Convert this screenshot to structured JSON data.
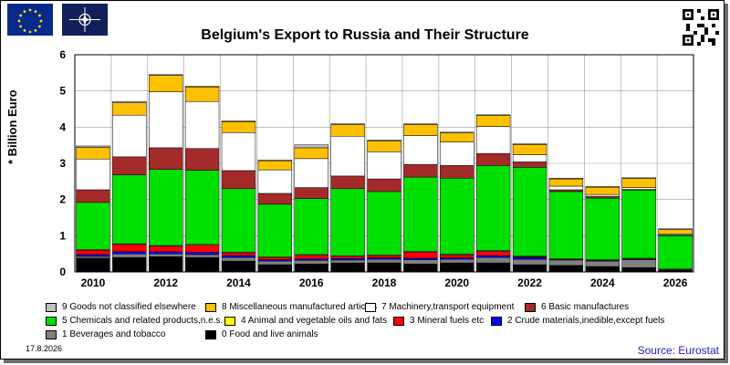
{
  "title": "Belgium's Export to Russia and Their Structure",
  "date": "17.8.2026",
  "source": "Source: Eurostat",
  "chart_data": {
    "type": "bar",
    "stacked": true,
    "ylabel": "* Billion Euro",
    "ylim": [
      0,
      6
    ],
    "yticks": [
      0,
      1,
      2,
      3,
      4,
      5,
      6
    ],
    "xticks": [
      2010,
      2012,
      2014,
      2016,
      2018,
      2020,
      2022,
      2024,
      2026
    ],
    "categories": [
      2010,
      2011,
      2012,
      2013,
      2014,
      2015,
      2016,
      2017,
      2018,
      2019,
      2020,
      2021,
      2022,
      2023,
      2024,
      2025,
      2026
    ],
    "grid": true,
    "series": [
      {
        "name": "0 Food and live animals",
        "color": "#000000",
        "values": [
          0.38,
          0.4,
          0.42,
          0.4,
          0.3,
          0.2,
          0.22,
          0.25,
          0.25,
          0.22,
          0.25,
          0.25,
          0.2,
          0.18,
          0.15,
          0.12,
          0.05
        ]
      },
      {
        "name": "1 Beverages and tobacco",
        "color": "#808080",
        "values": [
          0.05,
          0.1,
          0.08,
          0.08,
          0.1,
          0.1,
          0.1,
          0.08,
          0.1,
          0.12,
          0.1,
          0.15,
          0.15,
          0.15,
          0.15,
          0.22,
          0.02
        ]
      },
      {
        "name": "2 Crude materials,inedible,except fuels",
        "color": "#0000ff",
        "values": [
          0.05,
          0.06,
          0.06,
          0.06,
          0.05,
          0.04,
          0.04,
          0.04,
          0.04,
          0.04,
          0.04,
          0.05,
          0.05,
          0.02,
          0.02,
          0.02,
          0.01
        ]
      },
      {
        "name": "3 Mineral fuels etc",
        "color": "#ff0000",
        "values": [
          0.12,
          0.2,
          0.15,
          0.2,
          0.08,
          0.06,
          0.1,
          0.06,
          0.06,
          0.17,
          0.08,
          0.12,
          0.02,
          0.0,
          0.0,
          0.0,
          0.0
        ]
      },
      {
        "name": "4 Animal and vegetable oils and fats",
        "color": "#ffff00",
        "values": [
          0.02,
          0.02,
          0.02,
          0.02,
          0.02,
          0.02,
          0.02,
          0.02,
          0.02,
          0.02,
          0.02,
          0.02,
          0.02,
          0.02,
          0.02,
          0.02,
          0.0
        ]
      },
      {
        "name": "5 Chemicals and related products,n.e.s.",
        "color": "#00e000",
        "values": [
          1.3,
          1.9,
          2.1,
          2.05,
          1.75,
          1.45,
          1.55,
          1.85,
          1.75,
          2.05,
          2.1,
          2.35,
          2.45,
          1.85,
          1.7,
          1.88,
          0.92
        ]
      },
      {
        "name": "6 Basic manufactures",
        "color": "#a52a2a",
        "values": [
          0.35,
          0.5,
          0.6,
          0.6,
          0.5,
          0.3,
          0.3,
          0.35,
          0.35,
          0.35,
          0.35,
          0.33,
          0.15,
          0.05,
          0.05,
          0.02,
          0.02
        ]
      },
      {
        "name": "7 Machinery,transport equipment",
        "color": "#ffffff",
        "values": [
          0.85,
          1.15,
          1.55,
          1.3,
          1.05,
          0.65,
          0.8,
          1.1,
          0.75,
          0.8,
          0.65,
          0.75,
          0.2,
          0.1,
          0.05,
          0.05,
          0.03
        ]
      },
      {
        "name": "8 Miscellaneous manufactured articles",
        "color": "#ffc000",
        "values": [
          0.32,
          0.34,
          0.45,
          0.4,
          0.3,
          0.25,
          0.3,
          0.32,
          0.3,
          0.3,
          0.25,
          0.3,
          0.28,
          0.2,
          0.2,
          0.25,
          0.12
        ]
      },
      {
        "name": "9 Goods not classified elsewhere",
        "color": "#bfbfbf",
        "values": [
          0.04,
          0.04,
          0.02,
          0.02,
          0.02,
          0.02,
          0.08,
          0.02,
          0.02,
          0.02,
          0.02,
          0.02,
          0.02,
          0.02,
          0.02,
          0.02,
          0.02
        ]
      }
    ]
  }
}
